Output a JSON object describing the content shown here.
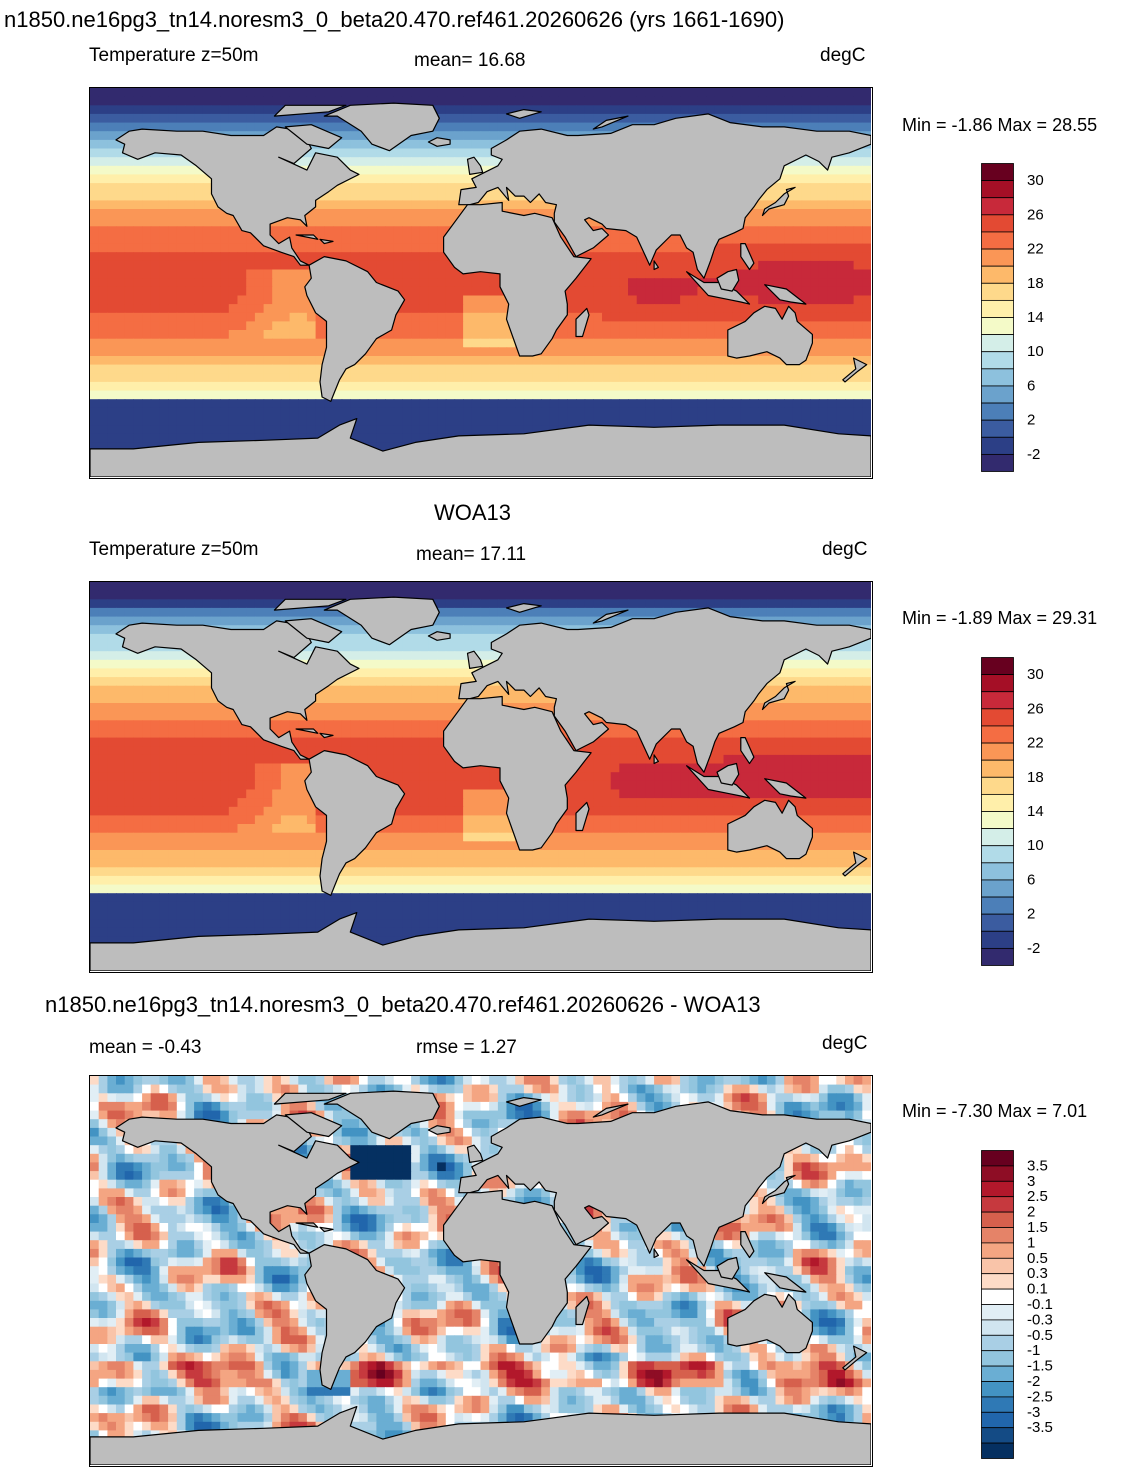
{
  "panels": [
    {
      "title": "n1850.ne16pg3_tn14.noresm3_0_beta20.470.ref461.20260626 (yrs 1661-1690)",
      "left_label": "Temperature z=50m",
      "center_label": "mean=  16.68",
      "units": "degC",
      "minmax": "Min =  -1.86 Max =  28.55"
    },
    {
      "title": "WOA13",
      "left_label": "Temperature z=50m",
      "center_label": "mean=  17.11",
      "units": "degC",
      "minmax": "Min =  -1.89 Max =  29.31"
    },
    {
      "title": "n1850.ne16pg3_tn14.noresm3_0_beta20.470.ref461.20260626 - WOA13",
      "left_label": "mean =  -0.43",
      "center_label": "rmse =   1.27",
      "units": "degC",
      "minmax": "Min =  -7.30 Max =   7.01"
    }
  ],
  "chart_data": [
    {
      "type": "heatmap",
      "title": "n1850.ne16pg3_tn14.noresm3_0_beta20.470.ref461.20260626 (yrs 1661-1690)",
      "variable": "Temperature z=50m",
      "units": "degC",
      "mean": 16.68,
      "min": -1.86,
      "max": 28.55,
      "colorbar_ticks": [
        "30",
        "26",
        "22",
        "18",
        "14",
        "10",
        "6",
        "2",
        "-2"
      ],
      "colorbar_colors": [
        "#67001f",
        "#a50f26",
        "#c8293a",
        "#e34a33",
        "#f46d43",
        "#fa9656",
        "#fdb96a",
        "#fed98b",
        "#ffefaa",
        "#f4fac8",
        "#d4eee8",
        "#b1dbe8",
        "#8dc1dd",
        "#6ba2cc",
        "#4c7fb8",
        "#3b5ca0",
        "#2c3f86",
        "#322a6e"
      ]
    },
    {
      "type": "heatmap",
      "title": "WOA13",
      "variable": "Temperature z=50m",
      "units": "degC",
      "mean": 17.11,
      "min": -1.89,
      "max": 29.31,
      "colorbar_ticks": [
        "30",
        "26",
        "22",
        "18",
        "14",
        "10",
        "6",
        "2",
        "-2"
      ],
      "colorbar_colors": [
        "#67001f",
        "#a50f26",
        "#c8293a",
        "#e34a33",
        "#f46d43",
        "#fa9656",
        "#fdb96a",
        "#fed98b",
        "#ffefaa",
        "#f4fac8",
        "#d4eee8",
        "#b1dbe8",
        "#8dc1dd",
        "#6ba2cc",
        "#4c7fb8",
        "#3b5ca0",
        "#2c3f86",
        "#322a6e"
      ]
    },
    {
      "type": "heatmap",
      "title": "n1850.ne16pg3_tn14.noresm3_0_beta20.470.ref461.20260626 - WOA13",
      "units": "degC",
      "mean": -0.43,
      "rmse": 1.27,
      "min": -7.3,
      "max": 7.01,
      "colorbar_ticks": [
        "3.5",
        "3",
        "2.5",
        "2",
        "1.5",
        "1",
        "0.5",
        "0.3",
        "0.1",
        "-0.1",
        "-0.3",
        "-0.5",
        "-1",
        "-1.5",
        "-2",
        "-2.5",
        "-3",
        "-3.5"
      ],
      "colorbar_colors": [
        "#67001f",
        "#8e0d25",
        "#b2182b",
        "#c6393e",
        "#d6604d",
        "#e58368",
        "#f4a582",
        "#f9c4a9",
        "#fddbc7",
        "#ffffff",
        "#e1eef5",
        "#d1e5f0",
        "#a9cfe5",
        "#92c5de",
        "#6aaed3",
        "#4393c3",
        "#2f79b5",
        "#2166ac",
        "#144b85",
        "#053061"
      ]
    }
  ],
  "colors": {
    "land": "#bdbdbd",
    "coastline": "#000000"
  }
}
